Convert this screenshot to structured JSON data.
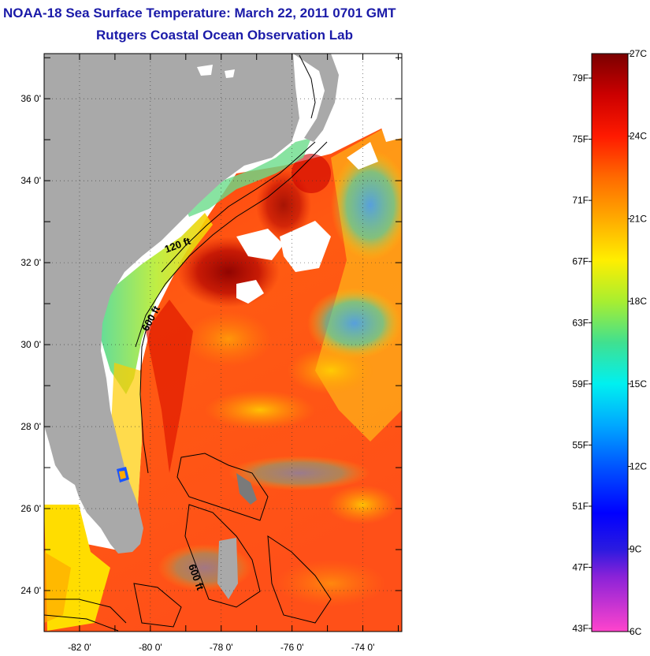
{
  "map": {
    "title": "NOAA-18 Sea Surface Temperature:  March 22, 2011 0701 GMT",
    "subtitle": "Rutgers Coastal Ocean Observation Lab",
    "lat_labels": [
      {
        "lat": 36,
        "label": "36 0'"
      },
      {
        "lat": 34,
        "label": "34 0'"
      },
      {
        "lat": 32,
        "label": "32 0'"
      },
      {
        "lat": 30,
        "label": "30 0'"
      },
      {
        "lat": 28,
        "label": "28 0'"
      },
      {
        "lat": 26,
        "label": "26 0'"
      },
      {
        "lat": 24,
        "label": "24 0'"
      }
    ],
    "lon_labels": [
      {
        "lon": -82,
        "label": "-82 0'"
      },
      {
        "lon": -80,
        "label": "-80 0'"
      },
      {
        "lon": -78,
        "label": "-78 0'"
      },
      {
        "lon": -76,
        "label": "-76 0'"
      },
      {
        "lon": -74,
        "label": "-74 0'"
      }
    ],
    "lat_range": [
      23.0,
      37.1
    ],
    "lon_range": [
      -83.0,
      -72.9
    ],
    "contour_labels": [
      {
        "text": "120 ft",
        "lon": -79.2,
        "lat": 32.35
      },
      {
        "text": "600 ft",
        "lon": -79.9,
        "lat": 30.6
      },
      {
        "text": "600 ft",
        "lon": -78.8,
        "lat": 24.3
      }
    ],
    "colors": {
      "land": "#a9a9a9",
      "title": "#1a1aa8",
      "no_data": "#ffffff"
    }
  },
  "colorbar": {
    "fahrenheit_labels": [
      "79F",
      "75F",
      "71F",
      "67F",
      "63F",
      "59F",
      "55F",
      "51F",
      "47F",
      "43F"
    ],
    "fahrenheit_values": [
      79,
      75,
      71,
      67,
      63,
      59,
      55,
      51,
      47,
      43
    ],
    "celsius_labels": [
      "27C",
      "24C",
      "21C",
      "18C",
      "15C",
      "12C",
      "9C",
      "6C"
    ],
    "celsius_values": [
      27,
      24,
      21,
      18,
      15,
      12,
      9,
      6
    ],
    "range_c": [
      6,
      27
    ],
    "stops": [
      {
        "c": 27,
        "color": "#7a0000"
      },
      {
        "c": 25.5,
        "color": "#cc0000"
      },
      {
        "c": 24,
        "color": "#ff1a00"
      },
      {
        "c": 22.5,
        "color": "#ff6a00"
      },
      {
        "c": 21,
        "color": "#ffaa00"
      },
      {
        "c": 19.5,
        "color": "#ffee00"
      },
      {
        "c": 18,
        "color": "#a8ee30"
      },
      {
        "c": 16.5,
        "color": "#40e090"
      },
      {
        "c": 15,
        "color": "#00f0f0"
      },
      {
        "c": 13.5,
        "color": "#00a8ff"
      },
      {
        "c": 12,
        "color": "#0055ff"
      },
      {
        "c": 10.3,
        "color": "#0000ff"
      },
      {
        "c": 9,
        "color": "#2a1ae0"
      },
      {
        "c": 8,
        "color": "#8a22d8"
      },
      {
        "c": 6,
        "color": "#ff44cc"
      }
    ]
  }
}
